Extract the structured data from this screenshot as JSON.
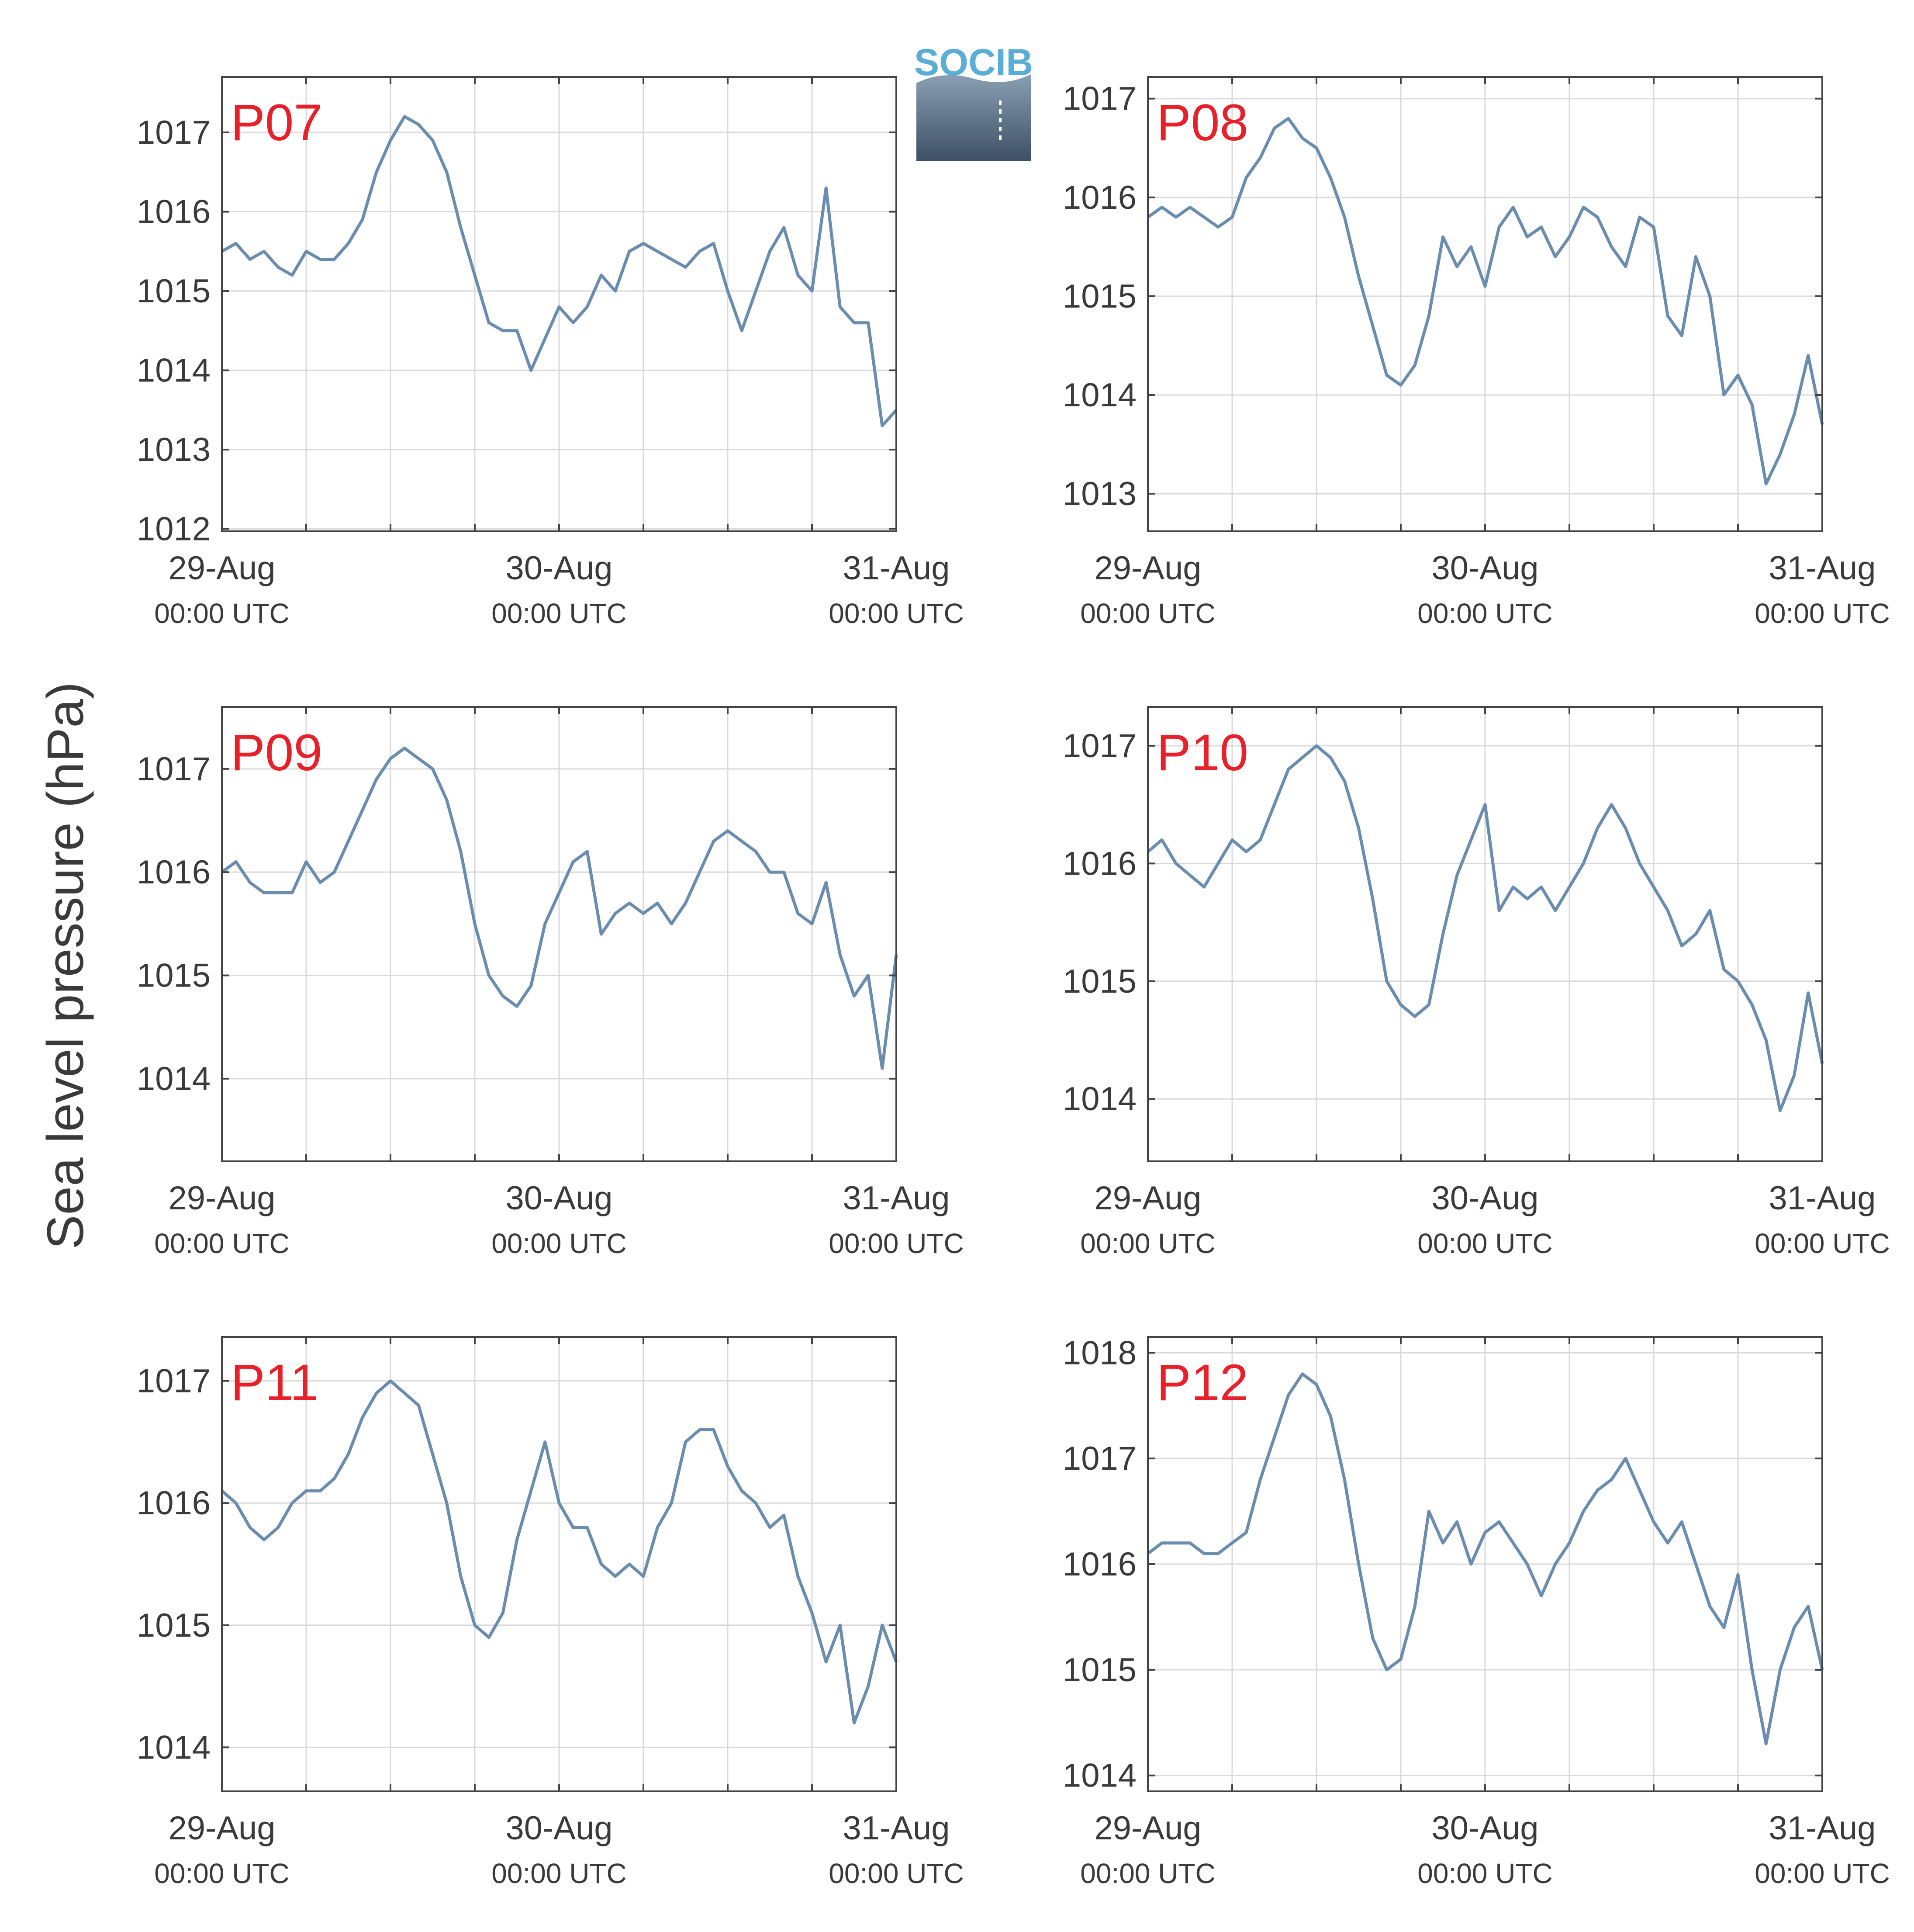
{
  "figure": {
    "ylabel": "Sea level pressure (hPa)",
    "logo_text": "SOCIB"
  },
  "colors": {
    "series": "#6a8caf",
    "station_label": "#e8202a",
    "axis": "#444444",
    "grid": "#d9d9d9",
    "text": "#3a3a3a",
    "logo_text": "#5aaed6",
    "logo_gradient_top": "#8aa0b4",
    "logo_gradient_bottom": "#3d5066"
  },
  "chart_data": [
    {
      "type": "line",
      "station": "P07",
      "x_ticks": [
        "29-Aug",
        "30-Aug",
        "31-Aug"
      ],
      "x_tick_sublabel": "00:00 UTC",
      "x_range_hours": [
        0,
        48
      ],
      "yticks": [
        1012,
        1013,
        1014,
        1015,
        1016,
        1017
      ],
      "ylim": [
        1011.97,
        1017.7
      ],
      "grid": true,
      "x": [
        0,
        1,
        2,
        3,
        4,
        5,
        6,
        7,
        8,
        9,
        10,
        11,
        12,
        13,
        14,
        15,
        16,
        17,
        18,
        19,
        20,
        21,
        22,
        23,
        24,
        25,
        26,
        27,
        28,
        29,
        30,
        31,
        32,
        33,
        34,
        35,
        36,
        37,
        38,
        39,
        40,
        41,
        42,
        43,
        44,
        45,
        46,
        47,
        48
      ],
      "values": [
        1015.5,
        1015.6,
        1015.4,
        1015.5,
        1015.3,
        1015.2,
        1015.5,
        1015.4,
        1015.4,
        1015.6,
        1015.9,
        1016.5,
        1016.9,
        1017.2,
        1017.1,
        1016.9,
        1016.5,
        1015.8,
        1015.2,
        1014.6,
        1014.5,
        1014.5,
        1014.0,
        1014.4,
        1014.8,
        1014.6,
        1014.8,
        1015.2,
        1015.0,
        1015.5,
        1015.6,
        1015.5,
        1015.4,
        1015.3,
        1015.5,
        1015.6,
        1015.0,
        1014.5,
        1015.0,
        1015.5,
        1015.8,
        1015.2,
        1015.0,
        1016.3,
        1014.8,
        1014.6,
        1014.6,
        1013.3,
        1013.5
      ]
    },
    {
      "type": "line",
      "station": "P08",
      "x_ticks": [
        "29-Aug",
        "30-Aug",
        "31-Aug"
      ],
      "x_tick_sublabel": "00:00 UTC",
      "x_range_hours": [
        0,
        48
      ],
      "yticks": [
        1013,
        1014,
        1015,
        1016,
        1017
      ],
      "ylim": [
        1012.62,
        1017.22
      ],
      "grid": true,
      "values": [
        1015.8,
        1015.9,
        1015.8,
        1015.9,
        1015.8,
        1015.7,
        1015.8,
        1016.2,
        1016.4,
        1016.7,
        1016.8,
        1016.6,
        1016.5,
        1016.2,
        1015.8,
        1015.2,
        1014.7,
        1014.2,
        1014.1,
        1014.3,
        1014.8,
        1015.6,
        1015.3,
        1015.5,
        1015.1,
        1015.7,
        1015.9,
        1015.6,
        1015.7,
        1015.4,
        1015.6,
        1015.9,
        1015.8,
        1015.5,
        1015.3,
        1015.8,
        1015.7,
        1014.8,
        1014.6,
        1015.4,
        1015.0,
        1014.0,
        1014.2,
        1013.9,
        1013.1,
        1013.4,
        1013.8,
        1014.4,
        1013.7
      ]
    },
    {
      "type": "line",
      "station": "P09",
      "x_ticks": [
        "29-Aug",
        "30-Aug",
        "31-Aug"
      ],
      "x_tick_sublabel": "00:00 UTC",
      "x_range_hours": [
        0,
        48
      ],
      "yticks": [
        1014,
        1015,
        1016,
        1017
      ],
      "ylim": [
        1013.2,
        1017.6
      ],
      "grid": true,
      "values": [
        1016.0,
        1016.1,
        1015.9,
        1015.8,
        1015.8,
        1015.8,
        1016.1,
        1015.9,
        1016.0,
        1016.3,
        1016.6,
        1016.9,
        1017.1,
        1017.2,
        1017.1,
        1017.0,
        1016.7,
        1016.2,
        1015.5,
        1015.0,
        1014.8,
        1014.7,
        1014.9,
        1015.5,
        1015.8,
        1016.1,
        1016.2,
        1015.4,
        1015.6,
        1015.7,
        1015.6,
        1015.7,
        1015.5,
        1015.7,
        1016.0,
        1016.3,
        1016.4,
        1016.3,
        1016.2,
        1016.0,
        1016.0,
        1015.6,
        1015.5,
        1015.9,
        1015.2,
        1014.8,
        1015.0,
        1014.1,
        1015.2
      ]
    },
    {
      "type": "line",
      "station": "P10",
      "x_ticks": [
        "29-Aug",
        "30-Aug",
        "31-Aug"
      ],
      "x_tick_sublabel": "00:00 UTC",
      "x_range_hours": [
        0,
        48
      ],
      "yticks": [
        1014,
        1015,
        1016,
        1017
      ],
      "ylim": [
        1013.47,
        1017.33
      ],
      "grid": true,
      "values": [
        1016.1,
        1016.2,
        1016.0,
        1015.9,
        1015.8,
        1016.0,
        1016.2,
        1016.1,
        1016.2,
        1016.5,
        1016.8,
        1016.9,
        1017.0,
        1016.9,
        1016.7,
        1016.3,
        1015.7,
        1015.0,
        1014.8,
        1014.7,
        1014.8,
        1015.4,
        1015.9,
        1016.2,
        1016.5,
        1015.6,
        1015.8,
        1015.7,
        1015.8,
        1015.6,
        1015.8,
        1016.0,
        1016.3,
        1016.5,
        1016.3,
        1016.0,
        1015.8,
        1015.6,
        1015.3,
        1015.4,
        1015.6,
        1015.1,
        1015.0,
        1014.8,
        1014.5,
        1013.9,
        1014.2,
        1014.9,
        1014.3
      ]
    },
    {
      "type": "line",
      "station": "P11",
      "x_ticks": [
        "29-Aug",
        "30-Aug",
        "31-Aug"
      ],
      "x_tick_sublabel": "00:00 UTC",
      "x_range_hours": [
        0,
        48
      ],
      "yticks": [
        1014,
        1015,
        1016,
        1017
      ],
      "ylim": [
        1013.64,
        1017.36
      ],
      "grid": true,
      "values": [
        1016.1,
        1016.0,
        1015.8,
        1015.7,
        1015.8,
        1016.0,
        1016.1,
        1016.1,
        1016.2,
        1016.4,
        1016.7,
        1016.9,
        1017.0,
        1016.9,
        1016.8,
        1016.4,
        1016.0,
        1015.4,
        1015.0,
        1014.9,
        1015.1,
        1015.7,
        1016.1,
        1016.5,
        1016.0,
        1015.8,
        1015.8,
        1015.5,
        1015.4,
        1015.5,
        1015.4,
        1015.8,
        1016.0,
        1016.5,
        1016.6,
        1016.6,
        1016.3,
        1016.1,
        1016.0,
        1015.8,
        1015.9,
        1015.4,
        1015.1,
        1014.7,
        1015.0,
        1014.2,
        1014.5,
        1015.0,
        1014.7
      ]
    },
    {
      "type": "line",
      "station": "P12",
      "x_ticks": [
        "29-Aug",
        "30-Aug",
        "31-Aug"
      ],
      "x_tick_sublabel": "00:00 UTC",
      "x_range_hours": [
        0,
        48
      ],
      "yticks": [
        1014,
        1015,
        1016,
        1017,
        1018
      ],
      "ylim": [
        1013.85,
        1018.15
      ],
      "grid": true,
      "values": [
        1016.1,
        1016.2,
        1016.2,
        1016.2,
        1016.1,
        1016.1,
        1016.2,
        1016.3,
        1016.8,
        1017.2,
        1017.6,
        1017.8,
        1017.7,
        1017.4,
        1016.8,
        1016.0,
        1015.3,
        1015.0,
        1015.1,
        1015.6,
        1016.5,
        1016.2,
        1016.4,
        1016.0,
        1016.3,
        1016.4,
        1016.2,
        1016.0,
        1015.7,
        1016.0,
        1016.2,
        1016.5,
        1016.7,
        1016.8,
        1017.0,
        1016.7,
        1016.4,
        1016.2,
        1016.4,
        1016.0,
        1015.6,
        1015.4,
        1015.9,
        1015.0,
        1014.3,
        1015.0,
        1015.4,
        1015.6,
        1015.0
      ]
    }
  ]
}
